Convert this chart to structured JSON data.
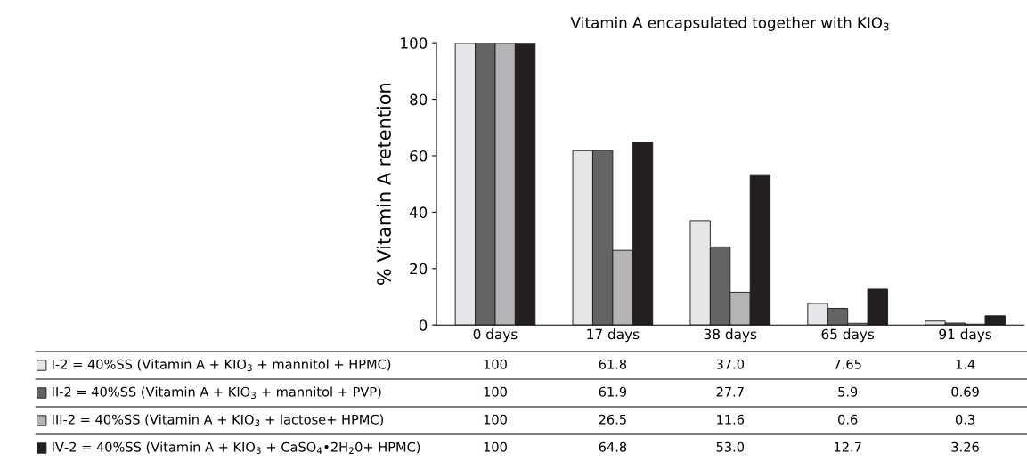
{
  "chart_data": {
    "type": "bar",
    "title": "Vitamin A encapsulated together with KIO$_{3}$",
    "ylabel": "% Vitamin A retention",
    "categories": [
      "0 days",
      "17 days",
      "38 days",
      "65 days",
      "91 days"
    ],
    "series": [
      {
        "name": "I-2 = 40%SS (Vitamin A + KIO$_{3}$ + mannitol + HPMC)",
        "color": "#e6e6e8",
        "values": [
          100,
          61.8,
          37.0,
          7.65,
          1.4
        ],
        "value_labels": [
          "100",
          "61.8",
          "37.0",
          "7.65",
          "1.4"
        ]
      },
      {
        "name": "II-2 = 40%SS (Vitamin A + KIO$_{3}$ + mannitol + PVP)",
        "color": "#646464",
        "values": [
          100,
          61.9,
          27.7,
          5.9,
          0.69
        ],
        "value_labels": [
          "100",
          "61.9",
          "27.7",
          "5.9",
          "0.69"
        ]
      },
      {
        "name": "III-2 = 40%SS (Vitamin A + KIO$_{3}$ + lactose+ HPMC)",
        "color": "#b4b4b6",
        "values": [
          100,
          26.5,
          11.6,
          0.6,
          0.3
        ],
        "value_labels": [
          "100",
          "26.5",
          "11.6",
          "0.6",
          "0.3"
        ]
      },
      {
        "name": "IV-2 = 40%SS (Vitamin A + KIO$_{3}$ + CaSO$_{4}$•2H$_{2}$0+ HPMC)",
        "color": "#231f20",
        "values": [
          100,
          64.8,
          53.0,
          12.7,
          3.26
        ],
        "value_labels": [
          "100",
          "64.8",
          "53.0",
          "12.7",
          "3.26"
        ]
      }
    ],
    "ylim": [
      0,
      100
    ],
    "yticks": [
      0,
      20,
      40,
      60,
      80,
      100
    ],
    "grid": false,
    "legend": "bottom left"
  }
}
